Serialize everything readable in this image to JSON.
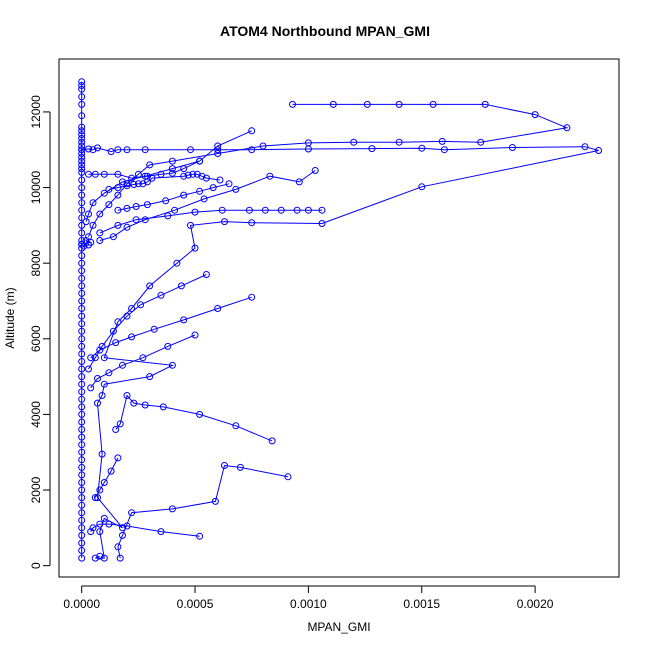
{
  "chart_data": {
    "type": "line",
    "title": "ATOM4 Northbound MPAN_GMI",
    "xlabel": "MPAN_GMI",
    "ylabel": "Altitude (m)",
    "xlim": [
      -0.0001,
      0.00237
    ],
    "ylim": [
      -300,
      13400
    ],
    "x_ticks": [
      {
        "value": 0.0,
        "label": "0.0000"
      },
      {
        "value": 0.0005,
        "label": "0.0005"
      },
      {
        "value": 0.001,
        "label": "0.0010"
      },
      {
        "value": 0.0015,
        "label": "0.0015"
      },
      {
        "value": 0.002,
        "label": "0.0020"
      }
    ],
    "y_ticks": [
      {
        "value": 0,
        "label": "0"
      },
      {
        "value": 2000,
        "label": "2000"
      },
      {
        "value": 4000,
        "label": "4000"
      },
      {
        "value": 6000,
        "label": "6000"
      },
      {
        "value": 8000,
        "label": "8000"
      },
      {
        "value": 10000,
        "label": "10000"
      },
      {
        "value": 12000,
        "label": "12000"
      }
    ],
    "grid": false,
    "marker": "open-circle",
    "series_color": "#0000ff",
    "series": [
      {
        "points": [
          [
            0.0,
            12800
          ],
          [
            0.0,
            12700
          ],
          [
            0.0,
            12600
          ],
          [
            0.0,
            12400
          ],
          [
            0.0,
            12200
          ],
          [
            0.0,
            11900
          ],
          [
            0.0,
            11600
          ],
          [
            0.0,
            11500
          ],
          [
            0.0,
            11400
          ],
          [
            0.0,
            11300
          ],
          [
            0.0,
            11200
          ],
          [
            0.0,
            11100
          ],
          [
            0.0,
            11000
          ],
          [
            0.0,
            10900
          ],
          [
            0.0,
            10800
          ],
          [
            0.0,
            10700
          ],
          [
            0.0,
            10600
          ],
          [
            0.0,
            10500
          ],
          [
            0.0,
            10400
          ],
          [
            0.0,
            10200
          ],
          [
            0.0,
            10000
          ],
          [
            0.0,
            9800
          ],
          [
            0.0,
            9600
          ],
          [
            0.0,
            9400
          ],
          [
            0.0,
            9200
          ],
          [
            0.0,
            9000
          ],
          [
            0.0,
            8800
          ],
          [
            0.0,
            8600
          ],
          [
            0.0,
            8500
          ],
          [
            0.0,
            8400
          ],
          [
            0.0,
            8200
          ],
          [
            0.0,
            8000
          ],
          [
            0.0,
            7800
          ],
          [
            0.0,
            7600
          ],
          [
            0.0,
            7400
          ],
          [
            0.0,
            7200
          ],
          [
            0.0,
            7000
          ],
          [
            0.0,
            6800
          ],
          [
            0.0,
            6600
          ],
          [
            0.0,
            6400
          ],
          [
            0.0,
            6200
          ],
          [
            0.0,
            6000
          ],
          [
            0.0,
            5800
          ],
          [
            0.0,
            5600
          ],
          [
            0.0,
            5400
          ],
          [
            0.0,
            5200
          ],
          [
            0.0,
            5000
          ],
          [
            0.0,
            4800
          ],
          [
            0.0,
            4600
          ],
          [
            0.0,
            4400
          ],
          [
            0.0,
            4200
          ],
          [
            0.0,
            4000
          ],
          [
            0.0,
            3800
          ],
          [
            0.0,
            3600
          ],
          [
            0.0,
            3400
          ],
          [
            0.0,
            3200
          ],
          [
            0.0,
            3000
          ],
          [
            0.0,
            2800
          ],
          [
            0.0,
            2600
          ],
          [
            0.0,
            2400
          ],
          [
            0.0,
            2200
          ],
          [
            0.0,
            2000
          ],
          [
            0.0,
            1800
          ],
          [
            0.0,
            1600
          ],
          [
            0.0,
            1400
          ],
          [
            0.0,
            1200
          ],
          [
            0.0,
            1000
          ],
          [
            0.0,
            800
          ],
          [
            0.0,
            600
          ],
          [
            0.0,
            400
          ],
          [
            0.0,
            200
          ]
        ]
      },
      {
        "points": [
          [
            0.0,
            8500
          ],
          [
            4e-05,
            8550
          ],
          [
            2e-05,
            8600
          ],
          [
            3e-05,
            8480
          ],
          [
            1e-05,
            8450
          ]
        ]
      },
      {
        "points": [
          [
            0.0,
            11000
          ],
          [
            3e-05,
            11020
          ],
          [
            5e-05,
            11000
          ],
          [
            7e-05,
            11050
          ],
          [
            0.00013,
            10950
          ],
          [
            0.00016,
            11000
          ],
          [
            0.0002,
            11000
          ],
          [
            0.00028,
            11000
          ],
          [
            0.00048,
            11000
          ],
          [
            0.0006,
            11000
          ],
          [
            0.00075,
            11000
          ],
          [
            0.001,
            11020
          ],
          [
            0.00128,
            11030
          ],
          [
            0.0015,
            11040
          ],
          [
            0.0016,
            11000
          ],
          [
            0.0019,
            11060
          ],
          [
            0.00222,
            11080
          ],
          [
            0.00228,
            10980
          ],
          [
            0.0015,
            10020
          ],
          [
            0.00106,
            9050
          ],
          [
            0.00075,
            9070
          ],
          [
            0.00063,
            9100
          ],
          [
            0.00048,
            9000
          ],
          [
            0.0005,
            8400
          ],
          [
            0.00042,
            8000
          ],
          [
            0.0003,
            7400
          ],
          [
            0.00022,
            6800
          ],
          [
            0.00016,
            6450
          ],
          [
            0.0001,
            5500
          ],
          [
            0.0004,
            5300
          ],
          [
            0.0003,
            5000
          ],
          [
            0.0001,
            4800
          ],
          [
            9e-05,
            4500
          ],
          [
            7e-05,
            4300
          ],
          [
            9e-05,
            2950
          ],
          [
            7e-05,
            1800
          ],
          [
            0.00018,
            1000
          ],
          [
            0.0001,
            1250
          ],
          [
            8e-05,
            900
          ],
          [
            0.0001,
            200
          ],
          [
            6e-05,
            200
          ],
          [
            8e-05,
            250
          ]
        ]
      },
      {
        "points": [
          [
            0.00093,
            12200
          ],
          [
            0.00111,
            12200
          ],
          [
            0.00126,
            12200
          ],
          [
            0.0014,
            12200
          ],
          [
            0.00155,
            12200
          ],
          [
            0.00178,
            12200
          ],
          [
            0.002,
            11930
          ],
          [
            0.00214,
            11580
          ],
          [
            0.00176,
            11200
          ],
          [
            0.00159,
            11220
          ],
          [
            0.0014,
            11200
          ],
          [
            0.0012,
            11200
          ],
          [
            0.001,
            11180
          ],
          [
            0.0008,
            11100
          ],
          [
            0.0006,
            10900
          ],
          [
            0.0004,
            10700
          ],
          [
            0.0003,
            10600
          ],
          [
            0.00025,
            10350
          ],
          [
            0.0002,
            10100
          ],
          [
            0.00016,
            9800
          ],
          [
            0.00012,
            9550
          ],
          [
            8e-05,
            9300
          ],
          [
            5e-05,
            9000
          ],
          [
            3e-05,
            8700
          ]
        ]
      },
      {
        "points": [
          [
            0.00075,
            11500
          ],
          [
            0.0006,
            11100
          ],
          [
            0.00052,
            10700
          ],
          [
            0.0004,
            10500
          ],
          [
            0.00028,
            10300
          ],
          [
            0.00018,
            10150
          ],
          [
            0.0001,
            9850
          ],
          [
            5e-05,
            9600
          ],
          [
            3e-05,
            9300
          ],
          [
            2e-05,
            9100
          ]
        ]
      },
      {
        "points": [
          [
            0.00103,
            10450
          ],
          [
            0.00096,
            10150
          ],
          [
            0.00083,
            10300
          ],
          [
            0.00068,
            9950
          ],
          [
            0.00054,
            9700
          ],
          [
            0.00041,
            9400
          ],
          [
            0.00028,
            9150
          ],
          [
            0.0002,
            8950
          ],
          [
            0.00014,
            8700
          ],
          [
            8e-05,
            8600
          ]
        ]
      },
      {
        "points": [
          [
            0.00106,
            9400
          ],
          [
            0.001,
            9400
          ],
          [
            0.00095,
            9400
          ],
          [
            0.00088,
            9400
          ],
          [
            0.00081,
            9400
          ],
          [
            0.00074,
            9400
          ],
          [
            0.00062,
            9400
          ],
          [
            0.0005,
            9350
          ],
          [
            0.00038,
            9250
          ],
          [
            0.00024,
            9150
          ],
          [
            0.00016,
            9000
          ],
          [
            8e-05,
            8800
          ]
        ]
      },
      {
        "points": [
          [
            0.00061,
            10200
          ],
          [
            0.00055,
            10250
          ],
          [
            0.00053,
            10300
          ],
          [
            0.00051,
            10350
          ],
          [
            0.00049,
            10350
          ],
          [
            0.00047,
            10330
          ],
          [
            0.00045,
            10300
          ],
          [
            0.00031,
            10250
          ],
          [
            0.00029,
            10150
          ],
          [
            0.00027,
            10100
          ],
          [
            0.00025,
            10100
          ],
          [
            0.00023,
            10080
          ],
          [
            0.0002,
            10050
          ],
          [
            0.00016,
            10000
          ],
          [
            0.00012,
            9950
          ]
        ]
      },
      {
        "points": [
          [
            0.00065,
            10100
          ],
          [
            0.00058,
            10000
          ],
          [
            0.00052,
            9900
          ],
          [
            0.00045,
            9800
          ],
          [
            0.00037,
            9650
          ],
          [
            0.00029,
            9550
          ],
          [
            0.00024,
            9500
          ],
          [
            0.0002,
            9450
          ],
          [
            0.00016,
            9400
          ]
        ]
      },
      {
        "points": [
          [
            0.00052,
            10700
          ],
          [
            0.00045,
            10500
          ],
          [
            0.0004,
            10380
          ],
          [
            0.00035,
            10350
          ],
          [
            0.00029,
            10300
          ],
          [
            0.00022,
            10250
          ],
          [
            0.00016,
            10350
          ],
          [
            0.0001,
            10350
          ],
          [
            6e-05,
            10350
          ],
          [
            3e-05,
            10350
          ]
        ]
      },
      {
        "points": [
          [
            0.00075,
            7100
          ],
          [
            0.0006,
            6800
          ],
          [
            0.00045,
            6500
          ],
          [
            0.00032,
            6250
          ],
          [
            0.00022,
            6050
          ],
          [
            0.00015,
            5900
          ],
          [
            8e-05,
            5700
          ],
          [
            4e-05,
            5500
          ]
        ]
      },
      {
        "points": [
          [
            0.00055,
            7700
          ],
          [
            0.00044,
            7400
          ],
          [
            0.00035,
            7150
          ],
          [
            0.00026,
            6900
          ],
          [
            0.0002,
            6600
          ],
          [
            0.00014,
            6200
          ],
          [
            9e-05,
            5800
          ],
          [
            6e-05,
            5500
          ],
          [
            3e-05,
            5200
          ]
        ]
      },
      {
        "points": [
          [
            0.0005,
            6100
          ],
          [
            0.00038,
            5800
          ],
          [
            0.00027,
            5500
          ],
          [
            0.00018,
            5300
          ],
          [
            0.00012,
            5100
          ],
          [
            7e-05,
            4950
          ],
          [
            4e-05,
            4700
          ]
        ]
      },
      {
        "points": [
          [
            0.00084,
            3300
          ],
          [
            0.00068,
            3700
          ],
          [
            0.00052,
            4000
          ],
          [
            0.00036,
            4200
          ],
          [
            0.00028,
            4250
          ],
          [
            0.00023,
            4300
          ],
          [
            0.0002,
            4500
          ],
          [
            0.00017,
            3750
          ],
          [
            0.00015,
            3600
          ]
        ]
      },
      {
        "points": [
          [
            0.00091,
            2350
          ],
          [
            0.0007,
            2600
          ],
          [
            0.00063,
            2650
          ],
          [
            0.00059,
            1700
          ],
          [
            0.0004,
            1500
          ],
          [
            0.00022,
            1400
          ],
          [
            0.00018,
            800
          ],
          [
            0.00016,
            500
          ],
          [
            0.00017,
            200
          ]
        ]
      },
      {
        "points": [
          [
            0.00052,
            780
          ],
          [
            0.00035,
            900
          ],
          [
            0.0002,
            1050
          ],
          [
            0.00012,
            1100
          ],
          [
            8e-05,
            1100
          ],
          [
            5e-05,
            1000
          ],
          [
            4e-05,
            900
          ]
        ]
      },
      {
        "points": [
          [
            0.00016,
            2850
          ],
          [
            0.00013,
            2500
          ],
          [
            0.0001,
            2200
          ],
          [
            8e-05,
            2000
          ],
          [
            6e-05,
            1800
          ]
        ]
      }
    ]
  }
}
